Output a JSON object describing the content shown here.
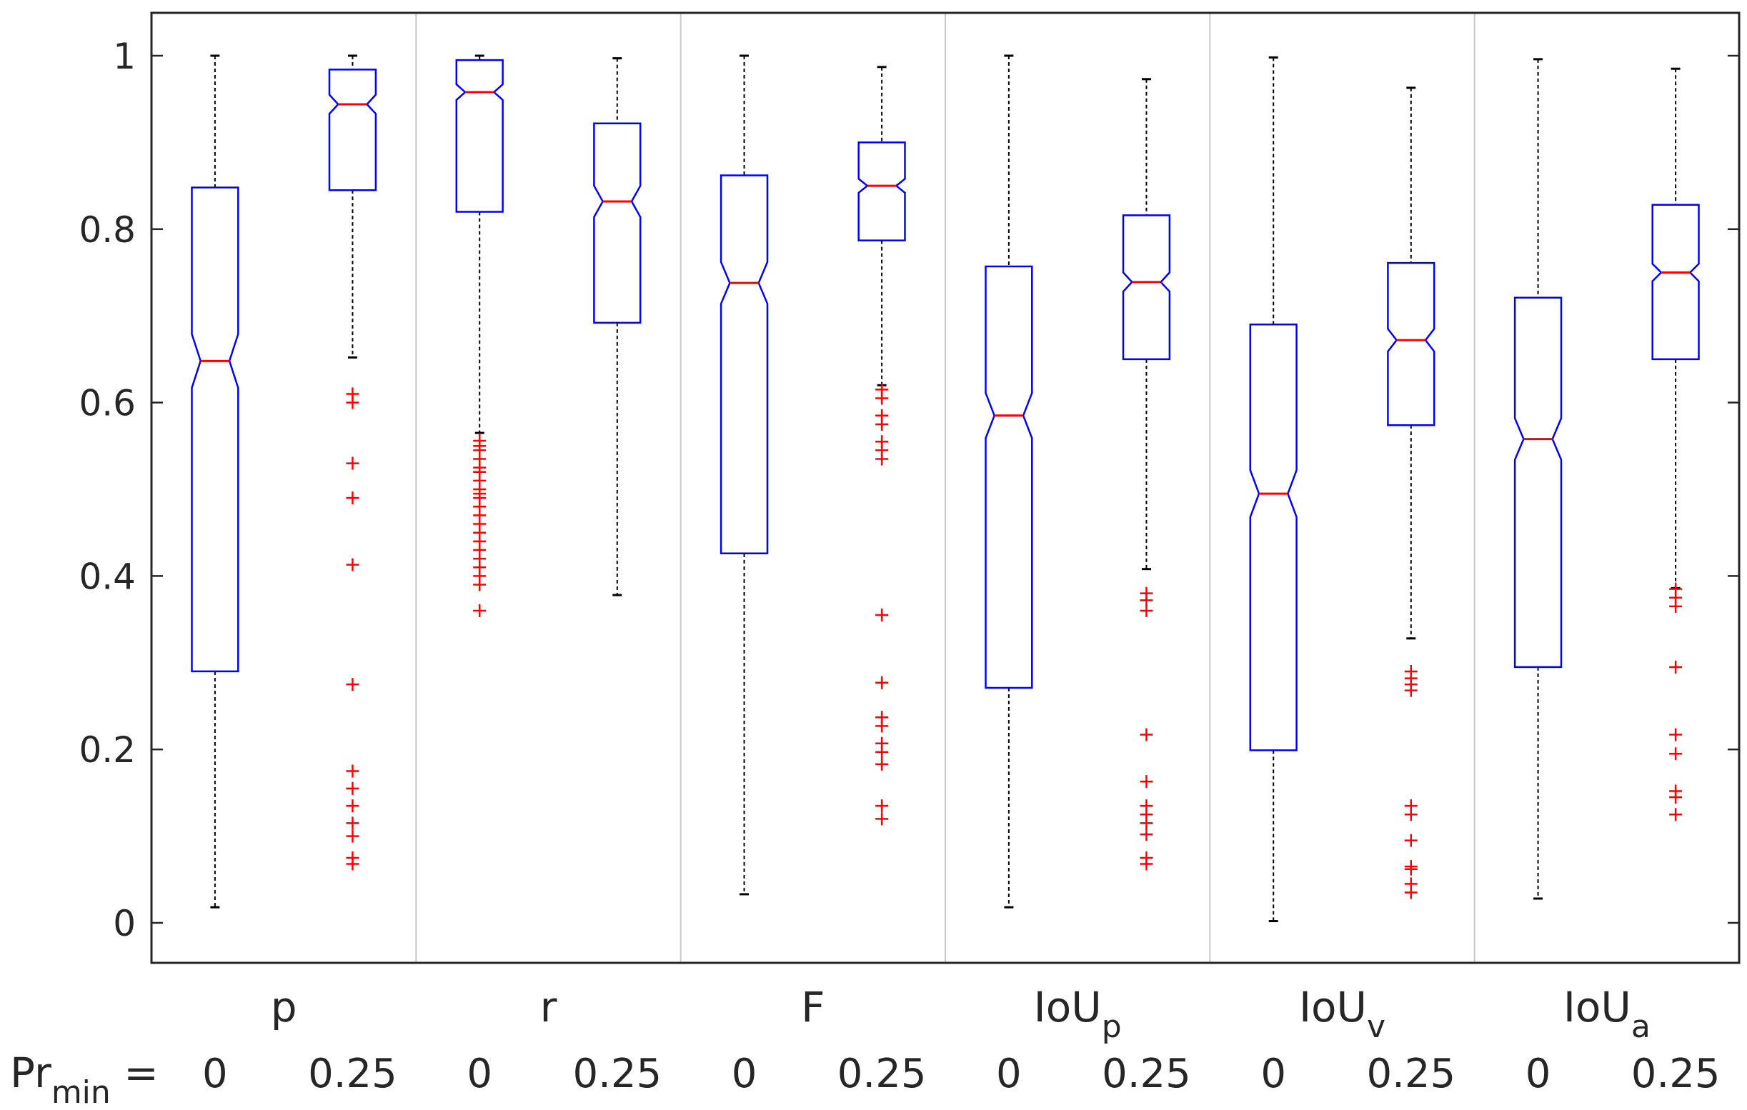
{
  "chart_data": {
    "type": "boxplot",
    "title": "",
    "xlabel": "",
    "ylabel": "",
    "ylim": [
      -0.05,
      1.05
    ],
    "yticks": [
      0,
      0.2,
      0.4,
      0.6,
      0.8,
      1
    ],
    "ytick_labels": [
      "0",
      "0.2",
      "0.4",
      "0.6",
      "0.8",
      "1"
    ],
    "grid": false,
    "parameter_label": {
      "base": "Pr",
      "sub": "min",
      "suffix": " ="
    },
    "colors": {
      "box": "#0000ff",
      "median": "#ff0000",
      "whisker": "#000000",
      "outlier": "#ff0000",
      "separator": "#c8c8c8",
      "axis": "#262626"
    },
    "groups": [
      {
        "name": "p",
        "name_base": "p",
        "name_sub": "",
        "boxes": [
          {
            "x_label": "0",
            "whisker_low": 0.018,
            "q1": 0.29,
            "median": 0.648,
            "q3": 0.848,
            "whisker_high": 1.0,
            "notch_low": 0.617,
            "notch_high": 0.679,
            "outliers": []
          },
          {
            "x_label": "0.25",
            "whisker_low": 0.652,
            "q1": 0.845,
            "median": 0.944,
            "q3": 0.984,
            "whisker_high": 1.0,
            "notch_low": 0.933,
            "notch_high": 0.955,
            "outliers": [
              0.61,
              0.6,
              0.53,
              0.49,
              0.413,
              0.275,
              0.175,
              0.155,
              0.135,
              0.115,
              0.1,
              0.075,
              0.068
            ]
          }
        ]
      },
      {
        "name": "r",
        "name_base": "r",
        "name_sub": "",
        "boxes": [
          {
            "x_label": "0",
            "whisker_low": 0.565,
            "q1": 0.82,
            "median": 0.958,
            "q3": 0.995,
            "whisker_high": 1.0,
            "notch_low": 0.949,
            "notch_high": 0.967,
            "outliers": [
              0.556,
              0.55,
              0.545,
              0.535,
              0.525,
              0.52,
              0.51,
              0.5,
              0.495,
              0.49,
              0.48,
              0.47,
              0.46,
              0.45,
              0.44,
              0.43,
              0.42,
              0.41,
              0.4,
              0.39,
              0.36
            ]
          },
          {
            "x_label": "0.25",
            "whisker_low": 0.378,
            "q1": 0.692,
            "median": 0.832,
            "q3": 0.922,
            "whisker_high": 0.997,
            "notch_low": 0.814,
            "notch_high": 0.85,
            "outliers": []
          }
        ]
      },
      {
        "name": "F",
        "name_base": "F",
        "name_sub": "",
        "boxes": [
          {
            "x_label": "0",
            "whisker_low": 0.033,
            "q1": 0.426,
            "median": 0.738,
            "q3": 0.862,
            "whisker_high": 1.0,
            "notch_low": 0.714,
            "notch_high": 0.762,
            "outliers": []
          },
          {
            "x_label": "0.25",
            "whisker_low": 0.62,
            "q1": 0.787,
            "median": 0.85,
            "q3": 0.9,
            "whisker_high": 0.987,
            "notch_low": 0.842,
            "notch_high": 0.858,
            "outliers": [
              0.615,
              0.605,
              0.585,
              0.575,
              0.555,
              0.545,
              0.535,
              0.355,
              0.277,
              0.237,
              0.227,
              0.207,
              0.197,
              0.183,
              0.135,
              0.12
            ]
          }
        ]
      },
      {
        "name": "IoU_p",
        "name_base": "IoU",
        "name_sub": "p",
        "boxes": [
          {
            "x_label": "0",
            "whisker_low": 0.018,
            "q1": 0.271,
            "median": 0.585,
            "q3": 0.757,
            "whisker_high": 1.0,
            "notch_low": 0.559,
            "notch_high": 0.611,
            "outliers": []
          },
          {
            "x_label": "0.25",
            "whisker_low": 0.408,
            "q1": 0.65,
            "median": 0.739,
            "q3": 0.816,
            "whisker_high": 0.973,
            "notch_low": 0.728,
            "notch_high": 0.75,
            "outliers": [
              0.38,
              0.372,
              0.36,
              0.217,
              0.163,
              0.135,
              0.125,
              0.115,
              0.102,
              0.075,
              0.068
            ]
          }
        ]
      },
      {
        "name": "IoU_v",
        "name_base": "IoU",
        "name_sub": "v",
        "boxes": [
          {
            "x_label": "0",
            "whisker_low": 0.002,
            "q1": 0.199,
            "median": 0.495,
            "q3": 0.69,
            "whisker_high": 0.998,
            "notch_low": 0.468,
            "notch_high": 0.522,
            "outliers": []
          },
          {
            "x_label": "0.25",
            "whisker_low": 0.328,
            "q1": 0.574,
            "median": 0.672,
            "q3": 0.761,
            "whisker_high": 0.963,
            "notch_low": 0.659,
            "notch_high": 0.685,
            "outliers": [
              0.29,
              0.282,
              0.275,
              0.268,
              0.135,
              0.125,
              0.095,
              0.065,
              0.062,
              0.045,
              0.035
            ]
          }
        ]
      },
      {
        "name": "IoU_a",
        "name_base": "IoU",
        "name_sub": "a",
        "boxes": [
          {
            "x_label": "0",
            "whisker_low": 0.028,
            "q1": 0.295,
            "median": 0.558,
            "q3": 0.721,
            "whisker_high": 0.996,
            "notch_low": 0.534,
            "notch_high": 0.582,
            "outliers": []
          },
          {
            "x_label": "0.25",
            "whisker_low": 0.386,
            "q1": 0.65,
            "median": 0.75,
            "q3": 0.828,
            "whisker_high": 0.985,
            "notch_low": 0.74,
            "notch_high": 0.76,
            "outliers": [
              0.385,
              0.375,
              0.365,
              0.295,
              0.217,
              0.195,
              0.152,
              0.145,
              0.125
            ]
          }
        ]
      }
    ]
  }
}
